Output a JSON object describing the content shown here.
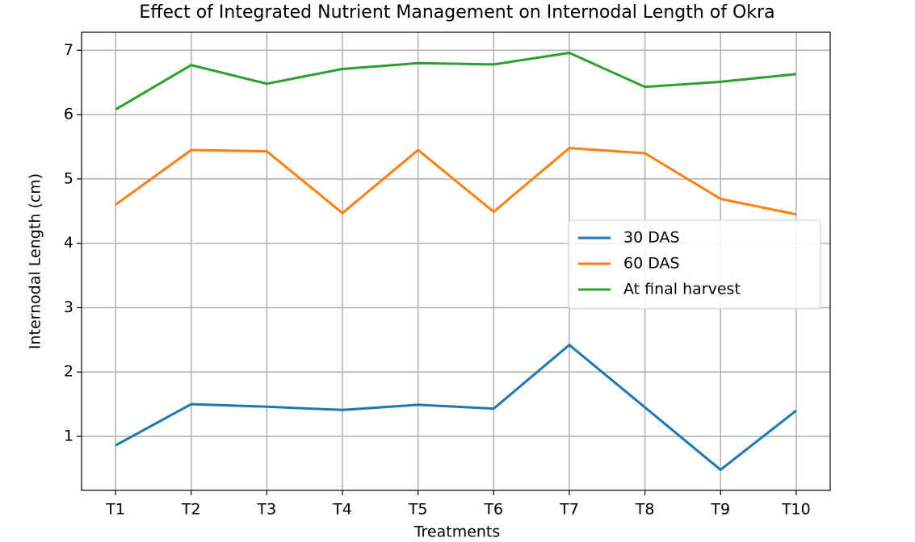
{
  "chart_data": {
    "type": "line",
    "title": "Effect of Integrated Nutrient Management on Internodal Length of Okra",
    "x_label": "Treatments",
    "y_label": "Internodal Length (cm)",
    "categories": [
      "T1",
      "T2",
      "T3",
      "T4",
      "T5",
      "T6",
      "T7",
      "T8",
      "T9",
      "T10"
    ],
    "series": [
      {
        "name": "30 DAS",
        "color": "#1f77b4",
        "values": [
          0.86,
          1.5,
          1.46,
          1.41,
          1.49,
          1.43,
          2.42,
          1.45,
          0.48,
          1.4
        ]
      },
      {
        "name": "60 DAS",
        "color": "#ff7f0e",
        "values": [
          4.6,
          5.45,
          5.43,
          4.47,
          5.45,
          4.49,
          5.48,
          5.4,
          4.69,
          4.45
        ]
      },
      {
        "name": "At final harvest",
        "color": "#2ca02c",
        "values": [
          6.08,
          6.77,
          6.48,
          6.71,
          6.8,
          6.78,
          6.96,
          6.43,
          6.51,
          6.63
        ]
      }
    ],
    "ylim": [
      0.16,
      7.28
    ],
    "yticks": [
      1,
      2,
      3,
      4,
      5,
      6,
      7
    ],
    "grid": true,
    "legend": "center right"
  }
}
